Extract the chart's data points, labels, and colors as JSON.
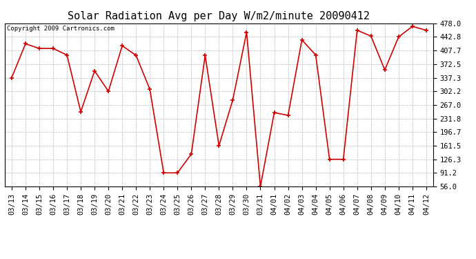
{
  "title": "Solar Radiation Avg per Day W/m2/minute 20090412",
  "copyright": "Copyright 2009 Cartronics.com",
  "x_labels": [
    "03/13",
    "03/14",
    "03/15",
    "03/16",
    "03/17",
    "03/18",
    "03/19",
    "03/20",
    "03/21",
    "03/22",
    "03/23",
    "03/24",
    "03/25",
    "03/26",
    "03/27",
    "03/28",
    "03/29",
    "03/30",
    "03/31",
    "04/01",
    "04/02",
    "04/03",
    "04/04",
    "04/05",
    "04/06",
    "04/07",
    "04/08",
    "04/09",
    "04/10",
    "04/11",
    "04/12"
  ],
  "y_values": [
    337.3,
    425.0,
    413.0,
    413.0,
    396.0,
    249.0,
    355.0,
    302.2,
    420.0,
    395.0,
    307.0,
    91.2,
    91.2,
    140.0,
    395.0,
    161.5,
    280.0,
    455.0,
    56.0,
    247.0,
    240.0,
    435.0,
    396.0,
    126.3,
    126.3,
    460.0,
    445.0,
    357.5,
    442.8,
    470.0,
    460.0
  ],
  "line_color": "#cc0000",
  "marker_color": "#cc0000",
  "bg_color": "#ffffff",
  "grid_color": "#bbbbbb",
  "y_ticks": [
    56.0,
    91.2,
    126.3,
    161.5,
    196.7,
    231.8,
    267.0,
    302.2,
    337.3,
    372.5,
    407.7,
    442.8,
    478.0
  ],
  "ylim": [
    56.0,
    478.0
  ],
  "title_fontsize": 11,
  "tick_fontsize": 7.5,
  "copyright_fontsize": 6.5
}
